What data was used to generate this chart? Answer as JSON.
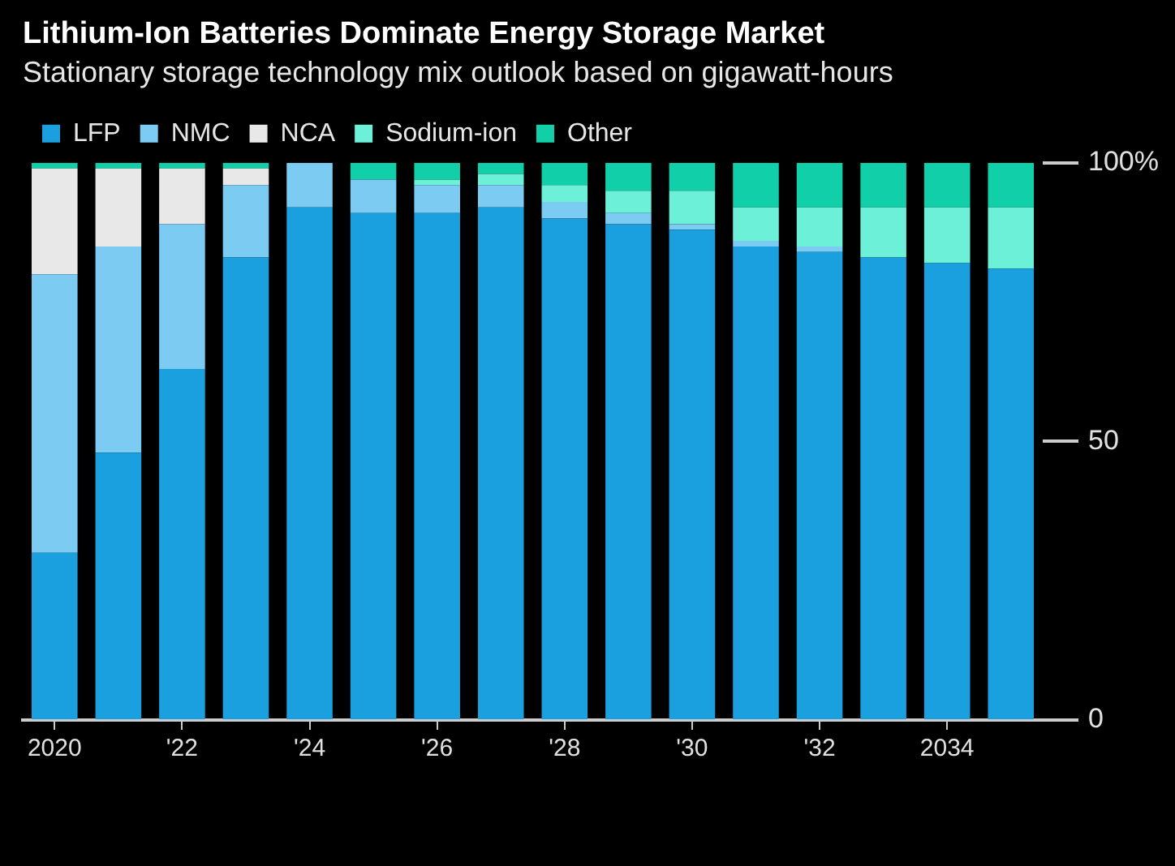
{
  "chart_data": {
    "type": "bar",
    "stacked": true,
    "title": "Lithium-Ion Batteries Dominate Energy Storage Market",
    "subtitle": "Stationary storage technology mix outlook based on gigawatt-hours",
    "categories": [
      "2020",
      null,
      "'22",
      null,
      "'24",
      null,
      "'26",
      null,
      "'28",
      null,
      "'30",
      null,
      "'32",
      null,
      "2034",
      null
    ],
    "series": [
      {
        "name": "LFP",
        "color": "#1a9fdf",
        "values": [
          30,
          48,
          63,
          83,
          92,
          91,
          91,
          92,
          90,
          89,
          88,
          85,
          84,
          83,
          82,
          81
        ]
      },
      {
        "name": "NMC",
        "color": "#7ccbf3",
        "values": [
          50,
          37,
          26,
          13,
          8,
          6,
          5,
          4,
          3,
          2,
          1,
          1,
          1,
          0,
          0,
          0
        ]
      },
      {
        "name": "NCA",
        "color": "#e8e8e8",
        "values": [
          19,
          14,
          10,
          3,
          0,
          0,
          0,
          0,
          0,
          0,
          0,
          0,
          0,
          0,
          0,
          0
        ]
      },
      {
        "name": "Sodium-ion",
        "color": "#6df0d8",
        "values": [
          0,
          0,
          0,
          0,
          0,
          0,
          1,
          2,
          3,
          4,
          6,
          6,
          7,
          9,
          10,
          11
        ]
      },
      {
        "name": "Other",
        "color": "#10cfa9",
        "values": [
          1,
          1,
          1,
          1,
          0,
          3,
          3,
          2,
          4,
          5,
          5,
          8,
          8,
          8,
          8,
          8
        ]
      }
    ],
    "ylim": [
      0,
      100
    ],
    "yticks": [
      0,
      50,
      {
        "value": 100,
        "label": "100%"
      }
    ],
    "grid": false,
    "legend": "top left"
  }
}
